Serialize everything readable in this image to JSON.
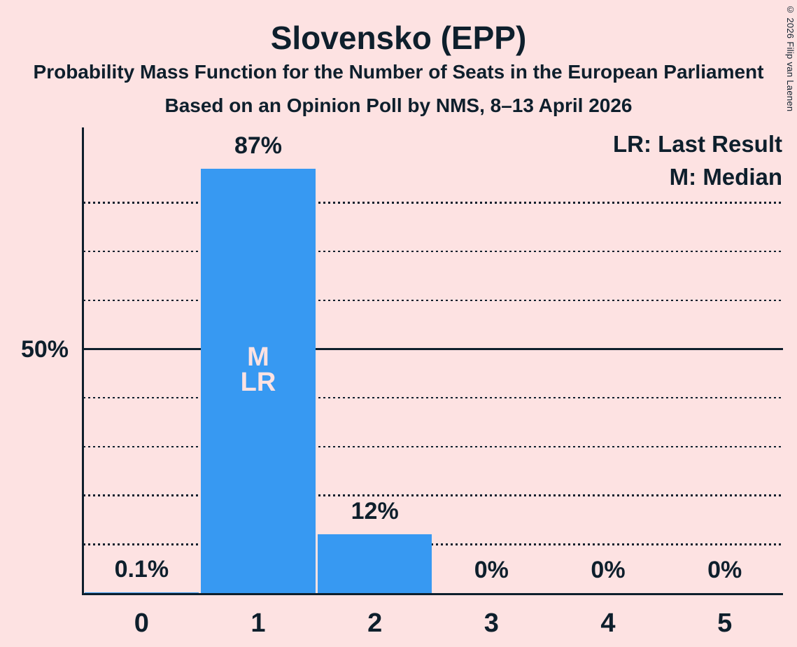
{
  "title": "Slovensko (EPP)",
  "subtitle1": "Probability Mass Function for the Number of Seats in the European Parliament",
  "subtitle2": "Based on an Opinion Poll by NMS, 8–13 April 2026",
  "copyright": "© 2026 Filip van Laenen",
  "legend": {
    "lr": "LR: Last Result",
    "m": "M: Median"
  },
  "colors": {
    "background": "#fde2e2",
    "bar": "#3799f2",
    "text": "#0e1f2c",
    "bar_annotation_text": "#fde2e2"
  },
  "y_axis": {
    "tick_label": "50%",
    "tick_pct": 50
  },
  "chart_data": {
    "type": "bar",
    "title": "Slovensko (EPP)",
    "xlabel": "",
    "ylabel": "",
    "categories": [
      "0",
      "1",
      "2",
      "3",
      "4",
      "5"
    ],
    "values": [
      0.1,
      87,
      12,
      0,
      0,
      0
    ],
    "value_labels": [
      "0.1%",
      "87%",
      "12%",
      "0%",
      "0%",
      "0%"
    ],
    "bar_annotations": [
      [],
      [
        "M",
        "LR"
      ],
      [],
      [],
      [],
      []
    ],
    "ylim": [
      0,
      100
    ],
    "gridlines_pct": [
      10,
      20,
      30,
      40,
      50,
      60,
      70,
      80
    ],
    "solid_gridline_pct": 50,
    "grid_style": "dotted",
    "legend_position": "top-right"
  }
}
